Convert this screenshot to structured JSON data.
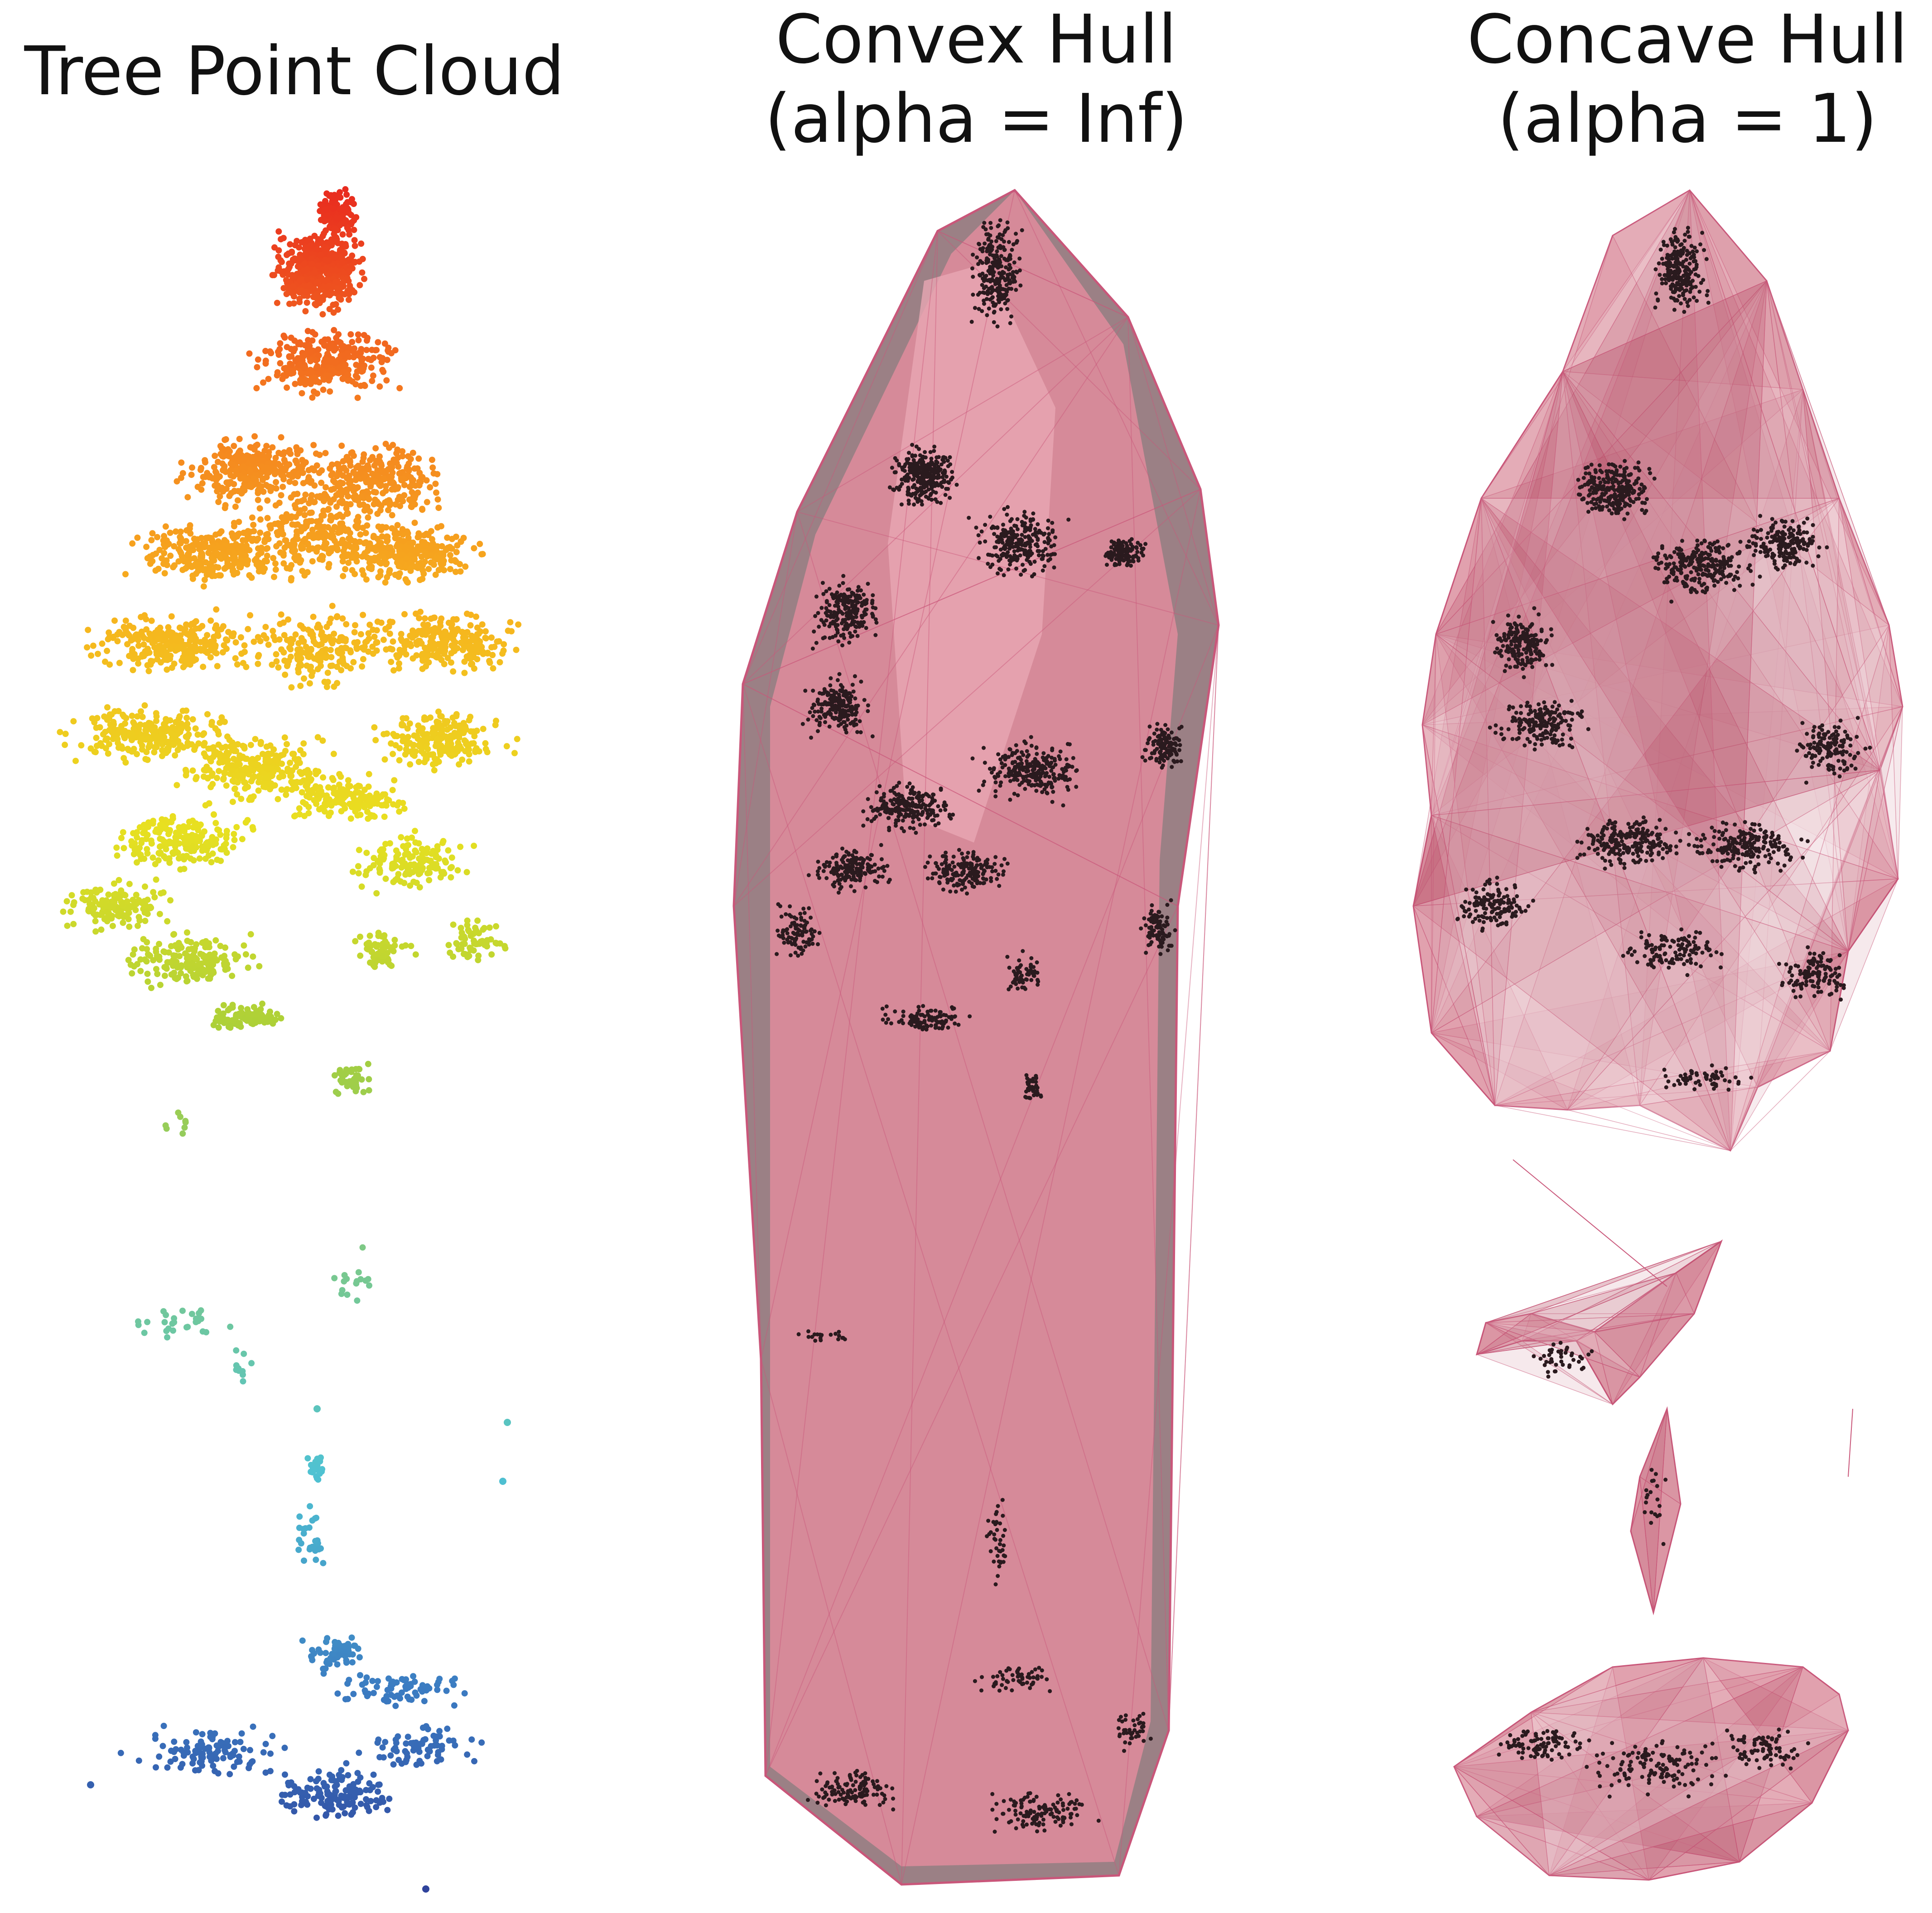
{
  "panels": [
    {
      "id": "tree-point-cloud",
      "title_lines": [
        "Tree Point Cloud"
      ]
    },
    {
      "id": "convex-hull",
      "title_lines": [
        "Convex Hull",
        "(alpha = Inf)"
      ]
    },
    {
      "id": "concave-hull",
      "title_lines": [
        "Concave Hull",
        "(alpha = 1)"
      ]
    }
  ],
  "colors": {
    "background": "#ffffff",
    "hull_fill": "#d98a9a",
    "hull_shadow": "#8a6a70",
    "hull_edge": "#c9577a",
    "point_dark": "#2a1a1e",
    "height_ramp": [
      "#2e3f99",
      "#3b7cc2",
      "#4fc2d2",
      "#7cc98a",
      "#a8cf3a",
      "#e8e020",
      "#f7b31e",
      "#f47a1f",
      "#e8281f"
    ]
  }
}
